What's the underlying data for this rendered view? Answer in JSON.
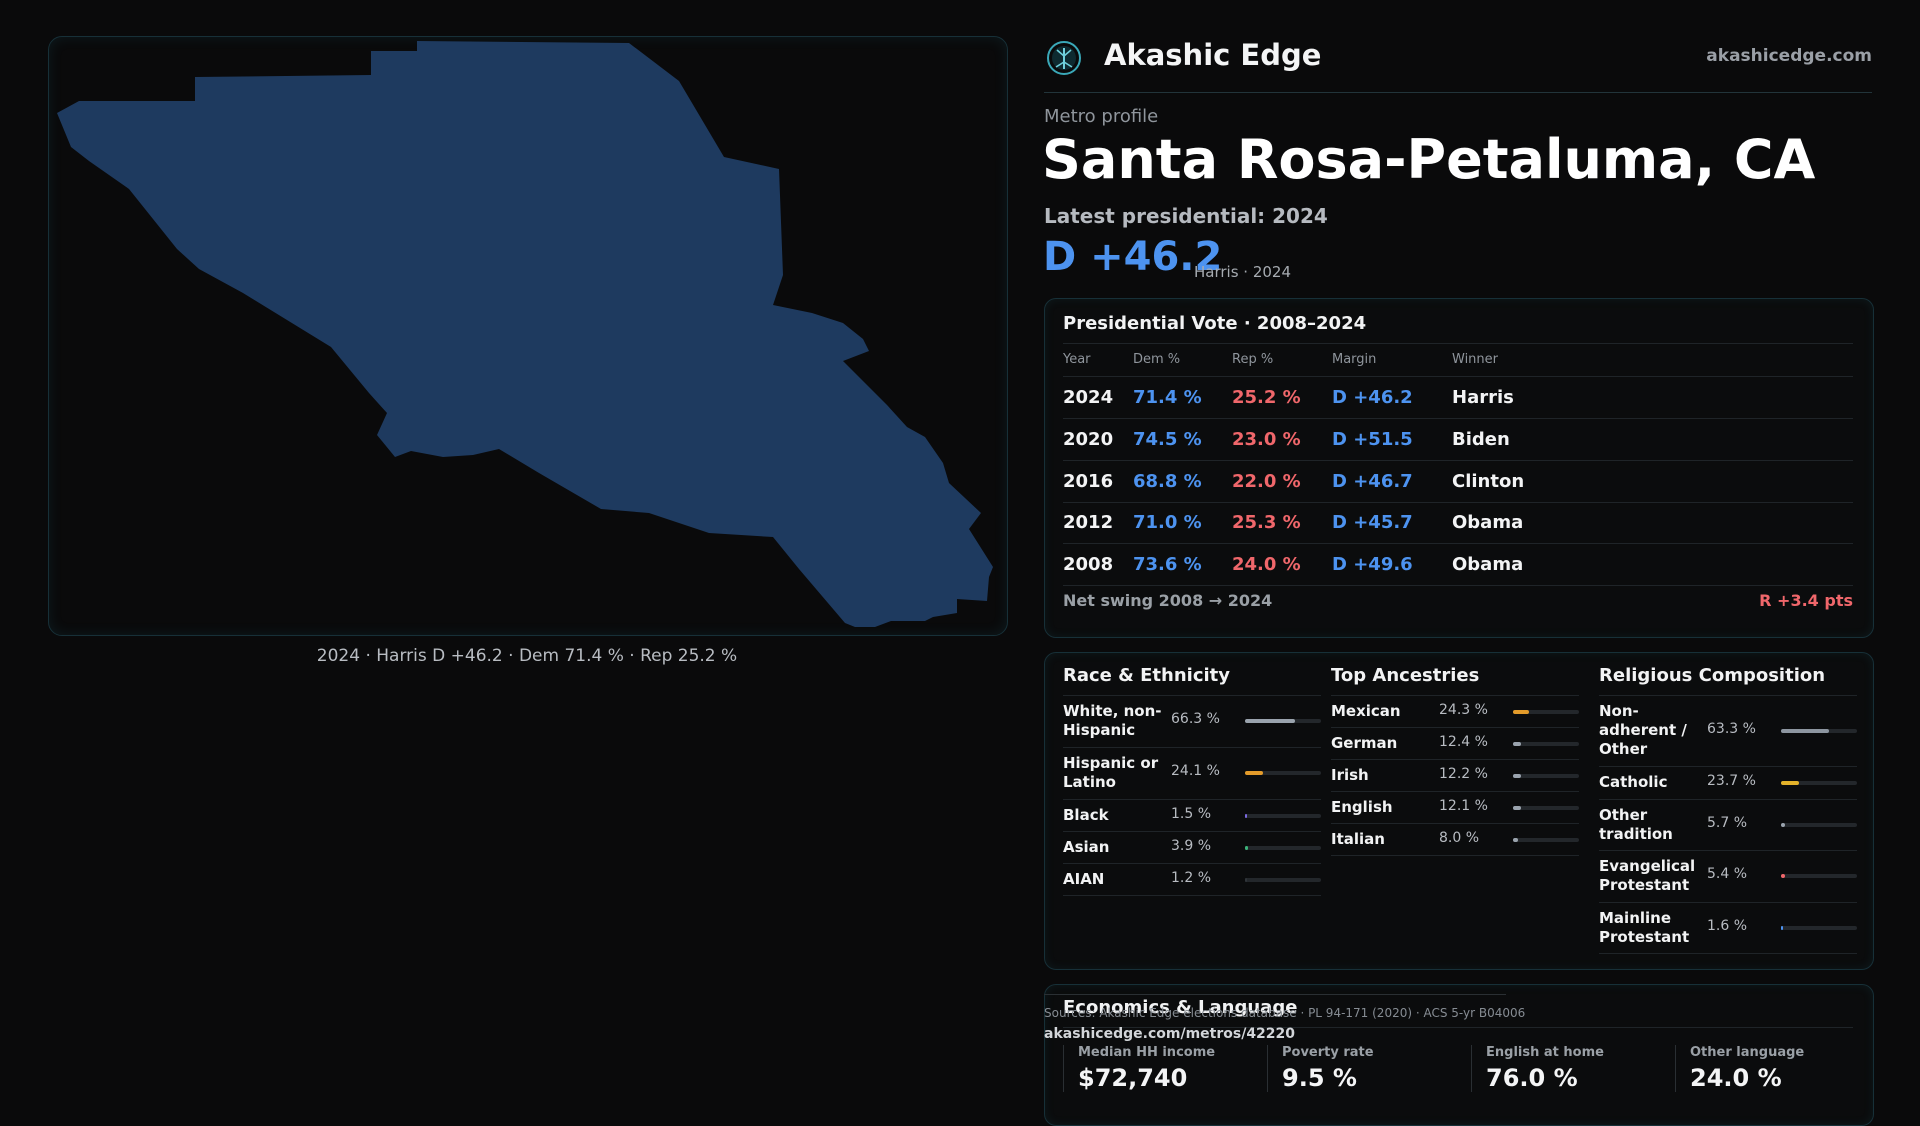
{
  "map": {
    "caption": "2024 · Harris D +46.2 · Dem 71.4 % · Rep 25.2 %",
    "fill_color": "#1e3a5f"
  },
  "header": {
    "brand_name": "Akashic Edge",
    "brand_url": "akashicedge.com",
    "logo_icon": "tree-emblem-icon"
  },
  "profile": {
    "kicker": "Metro profile",
    "title": "Santa Rosa-Petaluma, CA",
    "latest_label": "Latest presidential: 2024",
    "margin": "D +46.2",
    "margin_note": "Harris · 2024"
  },
  "presidential": {
    "title": "Presidential Vote · 2008–2024",
    "columns": [
      "Year",
      "Dem %",
      "Rep %",
      "Margin",
      "Winner"
    ],
    "rows": [
      {
        "year": "2024",
        "dem": "71.4 %",
        "rep": "25.2 %",
        "margin": "D +46.2",
        "winner": "Harris"
      },
      {
        "year": "2020",
        "dem": "74.5 %",
        "rep": "23.0 %",
        "margin": "D +51.5",
        "winner": "Biden"
      },
      {
        "year": "2016",
        "dem": "68.8 %",
        "rep": "22.0 %",
        "margin": "D +46.7",
        "winner": "Clinton"
      },
      {
        "year": "2012",
        "dem": "71.0 %",
        "rep": "25.3 %",
        "margin": "D +45.7",
        "winner": "Obama"
      },
      {
        "year": "2008",
        "dem": "73.6 %",
        "rep": "24.0 %",
        "margin": "D +49.6",
        "winner": "Obama"
      }
    ],
    "swing_label": "Net swing 2008 → 2024",
    "swing_value": "R +3.4 pts",
    "dem_color": "#4d93f0",
    "rep_color": "#f0676b"
  },
  "race": {
    "title": "Race & Ethnicity",
    "items": [
      {
        "label": "White, non-Hispanic",
        "value": "66.3 %",
        "pct": 66.3,
        "color": "#9aa3ad"
      },
      {
        "label": "Hispanic or Latino",
        "value": "24.1 %",
        "pct": 24.1,
        "color": "#e39b2a"
      },
      {
        "label": "Black",
        "value": "1.5 %",
        "pct": 1.5,
        "color": "#7b6be0"
      },
      {
        "label": "Asian",
        "value": "3.9 %",
        "pct": 3.9,
        "color": "#3cb37a"
      },
      {
        "label": "AIAN",
        "value": "1.2 %",
        "pct": 1.2,
        "color": "#2f3439"
      }
    ]
  },
  "ancestry": {
    "title": "Top Ancestries",
    "items": [
      {
        "label": "Mexican",
        "value": "24.3 %",
        "pct": 24.3,
        "color": "#e39b2a"
      },
      {
        "label": "German",
        "value": "12.4 %",
        "pct": 12.4,
        "color": "#9aa3ad"
      },
      {
        "label": "Irish",
        "value": "12.2 %",
        "pct": 12.2,
        "color": "#9aa3ad"
      },
      {
        "label": "English",
        "value": "12.1 %",
        "pct": 12.1,
        "color": "#9aa3ad"
      },
      {
        "label": "Italian",
        "value": "8.0 %",
        "pct": 8.0,
        "color": "#9aa3ad"
      }
    ]
  },
  "religion": {
    "title": "Religious Composition",
    "items": [
      {
        "label": "Non-adherent / Other",
        "value": "63.3 %",
        "pct": 63.3,
        "color": "#8d96a0"
      },
      {
        "label": "Catholic",
        "value": "23.7 %",
        "pct": 23.7,
        "color": "#e3b22a"
      },
      {
        "label": "Other tradition",
        "value": "5.7 %",
        "pct": 5.7,
        "color": "#9aa3ad"
      },
      {
        "label": "Evangelical Protestant",
        "value": "5.4 %",
        "pct": 5.4,
        "color": "#f0676b"
      },
      {
        "label": "Mainline Protestant",
        "value": "1.6 %",
        "pct": 1.6,
        "color": "#4d93f0"
      }
    ]
  },
  "economics": {
    "title": "Economics & Language",
    "cells": [
      {
        "label": "Median HH income",
        "value": "$72,740"
      },
      {
        "label": "Poverty rate",
        "value": "9.5 %"
      },
      {
        "label": "English at home",
        "value": "76.0 %"
      },
      {
        "label": "Other language",
        "value": "24.0 %"
      }
    ]
  },
  "footer": {
    "sources": "Sources: Akashic Edge elections database · PL 94-171 (2020) · ACS 5-yr B04006",
    "permalink": "akashicedge.com/metros/42220"
  }
}
